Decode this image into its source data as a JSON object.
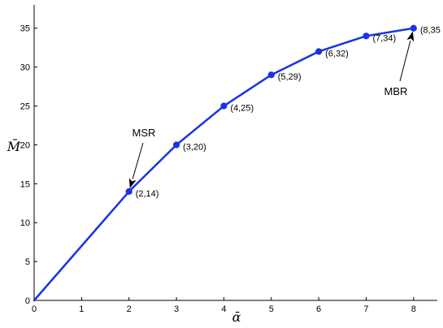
{
  "chart_data": {
    "type": "line",
    "title": "",
    "xlabel": "ᾱ",
    "ylabel": "M̄",
    "xlim": [
      0,
      8.5
    ],
    "ylim": [
      0,
      38
    ],
    "xticks": [
      0,
      1,
      2,
      3,
      4,
      5,
      6,
      7,
      8
    ],
    "yticks": [
      0,
      5,
      10,
      15,
      20,
      25,
      30,
      35
    ],
    "grid": false,
    "series": [
      {
        "color": "#1a33e6",
        "x": [
          0,
          2,
          3,
          4,
          5,
          6,
          7,
          8
        ],
        "y": [
          0,
          14,
          20,
          25,
          29,
          32,
          34,
          35
        ],
        "markers_at_x": [
          2,
          3,
          4,
          5,
          6,
          7,
          8
        ]
      }
    ],
    "point_labels": [
      {
        "x": 2,
        "y": 14,
        "text": "(2,14)"
      },
      {
        "x": 3,
        "y": 20,
        "text": "(3,20)"
      },
      {
        "x": 4,
        "y": 25,
        "text": "(4,25)"
      },
      {
        "x": 5,
        "y": 29,
        "text": "(5,29)"
      },
      {
        "x": 6,
        "y": 32,
        "text": "(6,32)"
      },
      {
        "x": 7,
        "y": 34,
        "text": "(7,34)"
      },
      {
        "x": 8,
        "y": 35,
        "text": "(8,35"
      }
    ],
    "annotations": [
      {
        "text": "MSR",
        "target_x": 2,
        "target_y": 14
      },
      {
        "text": "MBR",
        "target_x": 8,
        "target_y": 35
      }
    ]
  }
}
